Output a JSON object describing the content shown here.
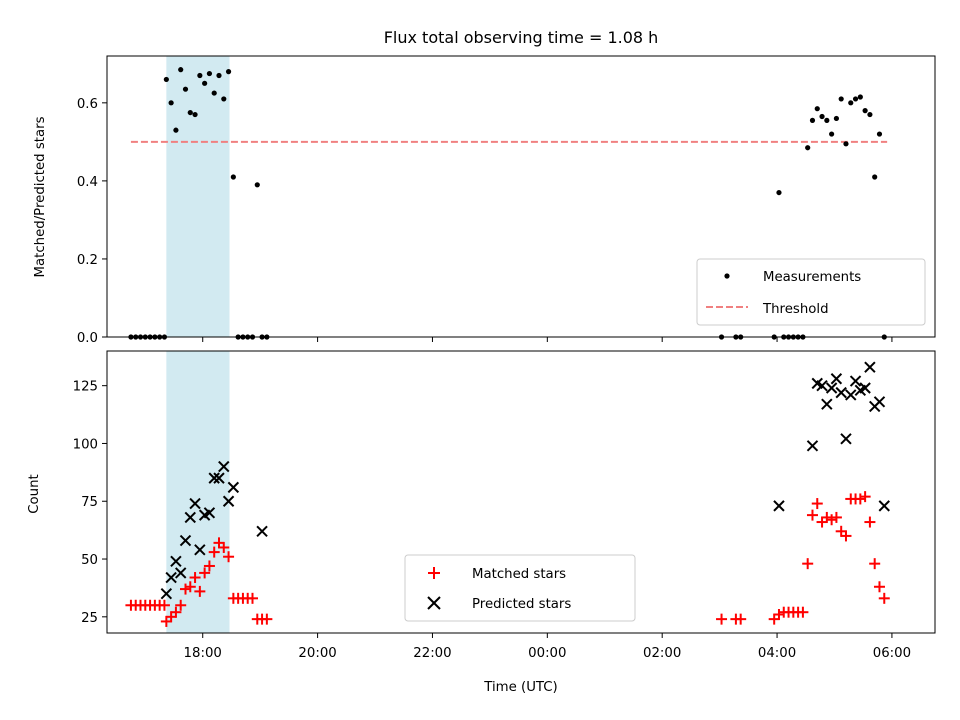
{
  "chart_data": [
    {
      "type": "scatter",
      "title": "Flux total observing time = 1.08 h",
      "xlabel": "",
      "ylabel": "Matched/Predicted stars",
      "xlim": [
        "16:20",
        "06:45"
      ],
      "ylim": [
        0,
        0.72
      ],
      "yticks": [
        0.0,
        0.2,
        0.4,
        0.6
      ],
      "ytick_labels": [
        "0.0",
        "0.2",
        "0.4",
        "0.6"
      ],
      "xtick_labels_shown": false,
      "grid": false,
      "shaded_interval": {
        "start": "17:22",
        "end": "18:28",
        "color": "#add8e6"
      },
      "legend_position": "lower-right",
      "threshold": {
        "name": "Threshold",
        "value": 0.5,
        "x_start": "16:45",
        "x_end": "05:55",
        "color": "#f08080"
      },
      "series": [
        {
          "name": "Measurements",
          "color": "#000000",
          "x": [
            "16:45",
            "16:50",
            "16:55",
            "17:00",
            "17:05",
            "17:10",
            "17:15",
            "17:20",
            "17:22",
            "17:27",
            "17:32",
            "17:37",
            "17:42",
            "17:47",
            "17:52",
            "17:57",
            "18:02",
            "18:07",
            "18:12",
            "18:17",
            "18:22",
            "18:27",
            "18:32",
            "18:37",
            "18:42",
            "18:47",
            "18:52",
            "18:57",
            "19:02",
            "19:07",
            "03:02",
            "03:17",
            "03:22",
            "03:57",
            "04:02",
            "04:07",
            "04:12",
            "04:17",
            "04:22",
            "04:27",
            "04:32",
            "04:37",
            "04:42",
            "04:47",
            "04:52",
            "04:57",
            "05:02",
            "05:07",
            "05:12",
            "05:17",
            "05:22",
            "05:27",
            "05:32",
            "05:37",
            "05:42",
            "05:47",
            "05:52"
          ],
          "y": [
            0,
            0,
            0,
            0,
            0,
            0,
            0,
            0,
            0.66,
            0.6,
            0.53,
            0.685,
            0.635,
            0.575,
            0.57,
            0.67,
            0.65,
            0.675,
            0.625,
            0.67,
            0.61,
            0.68,
            0.41,
            0,
            0,
            0,
            0,
            0.39,
            0,
            0,
            0,
            0,
            0,
            0,
            0.37,
            0,
            0,
            0,
            0,
            0,
            0.485,
            0.555,
            0.585,
            0.565,
            0.555,
            0.52,
            0.56,
            0.61,
            0.495,
            0.6,
            0.61,
            0.615,
            0.58,
            0.57,
            0.41,
            0.52,
            0
          ]
        }
      ]
    },
    {
      "type": "scatter",
      "title": "",
      "xlabel": "Time (UTC)",
      "ylabel": "Count",
      "xlim": [
        "16:20",
        "06:45"
      ],
      "ylim": [
        18,
        140
      ],
      "yticks": [
        25,
        50,
        75,
        100,
        125
      ],
      "ytick_labels": [
        "25",
        "50",
        "75",
        "100",
        "125"
      ],
      "xticks": [
        "18:00",
        "20:00",
        "22:00",
        "00:00",
        "02:00",
        "04:00",
        "06:00"
      ],
      "xtick_labels": [
        "18:00",
        "20:00",
        "22:00",
        "00:00",
        "02:00",
        "04:00",
        "06:00"
      ],
      "grid": false,
      "shaded_interval": {
        "start": "17:22",
        "end": "18:28",
        "color": "#add8e6"
      },
      "legend_position": "lower-center",
      "series": [
        {
          "name": "Matched stars",
          "marker": "plus",
          "color": "#ff0000",
          "x": [
            "16:45",
            "16:50",
            "16:55",
            "17:00",
            "17:05",
            "17:10",
            "17:15",
            "17:20",
            "17:22",
            "17:27",
            "17:32",
            "17:37",
            "17:42",
            "17:47",
            "17:52",
            "17:57",
            "18:02",
            "18:07",
            "18:12",
            "18:17",
            "18:22",
            "18:27",
            "18:32",
            "18:37",
            "18:42",
            "18:47",
            "18:52",
            "18:57",
            "19:02",
            "19:07",
            "03:02",
            "03:17",
            "03:22",
            "03:57",
            "04:02",
            "04:07",
            "04:12",
            "04:17",
            "04:22",
            "04:27",
            "04:32",
            "04:37",
            "04:42",
            "04:47",
            "04:52",
            "04:57",
            "05:02",
            "05:07",
            "05:12",
            "05:17",
            "05:22",
            "05:27",
            "05:32",
            "05:37",
            "05:42",
            "05:47",
            "05:52"
          ],
          "y": [
            30,
            30,
            30,
            30,
            30,
            30,
            30,
            30,
            23,
            25,
            27,
            30,
            37,
            38,
            42,
            36,
            44,
            47,
            53,
            57,
            55,
            51,
            33,
            33,
            33,
            33,
            33,
            24,
            24,
            24,
            24,
            24,
            24,
            24,
            26,
            27,
            27,
            27,
            27,
            27,
            48,
            69,
            74,
            66,
            68,
            67,
            68,
            62,
            60,
            76,
            76,
            76,
            77,
            66,
            48,
            38,
            33
          ]
        },
        {
          "name": "Predicted stars",
          "marker": "x",
          "color": "#000000",
          "x": [
            "17:22",
            "17:27",
            "17:32",
            "17:37",
            "17:42",
            "17:47",
            "17:52",
            "17:57",
            "18:02",
            "18:07",
            "18:12",
            "18:17",
            "18:22",
            "18:27",
            "18:32",
            "19:02",
            "04:02",
            "04:37",
            "04:42",
            "04:47",
            "04:52",
            "04:57",
            "05:02",
            "05:07",
            "05:12",
            "05:17",
            "05:22",
            "05:27",
            "05:32",
            "05:37",
            "05:42",
            "05:47",
            "05:52"
          ],
          "y": [
            35,
            42,
            49,
            44,
            58,
            68,
            74,
            54,
            69,
            70,
            85,
            85,
            90,
            75,
            81,
            62,
            73,
            99,
            126,
            125,
            117,
            124,
            128,
            122,
            102,
            121,
            127,
            123,
            124,
            133,
            116,
            118,
            73
          ]
        }
      ]
    }
  ]
}
